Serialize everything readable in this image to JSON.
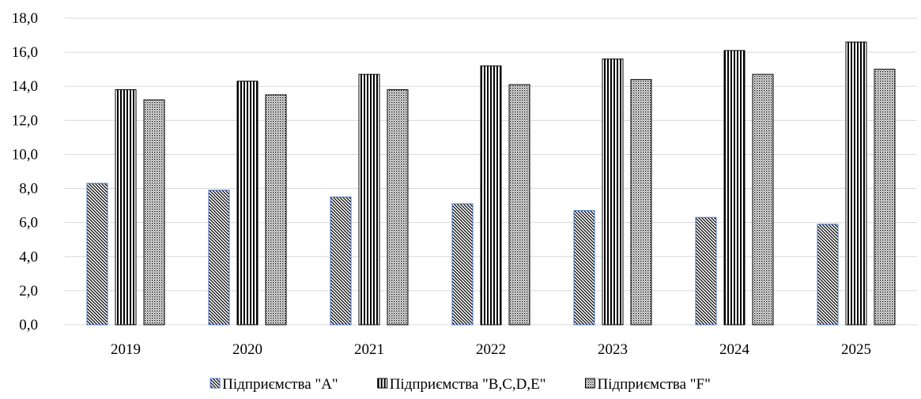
{
  "chart_data": {
    "type": "bar",
    "categories": [
      "2019",
      "2020",
      "2021",
      "2022",
      "2023",
      "2024",
      "2025"
    ],
    "series": [
      {
        "name": "Підприємства \"A\"",
        "values": [
          8.3,
          7.9,
          7.5,
          7.1,
          6.7,
          6.3,
          5.9
        ],
        "pattern": "diagonal-hatch",
        "border": "#4472c4"
      },
      {
        "name": "Підприємства \"B,C,D,E\"",
        "values": [
          13.8,
          14.3,
          14.7,
          15.2,
          15.6,
          16.1,
          16.6
        ],
        "pattern": "vertical-stripes",
        "border": "#000000"
      },
      {
        "name": "Підприємства \"F\"",
        "values": [
          13.2,
          13.5,
          13.8,
          14.1,
          14.4,
          14.7,
          15.0
        ],
        "pattern": "dots",
        "border": "#000000"
      }
    ],
    "ylim": [
      0,
      18
    ],
    "yticks": [
      "0,0",
      "2,0",
      "4,0",
      "6,0",
      "8,0",
      "10,0",
      "12,0",
      "14,0",
      "16,0",
      "18,0"
    ],
    "grid": true,
    "gridColor": "#d9d9d9",
    "legend": "bottom"
  }
}
